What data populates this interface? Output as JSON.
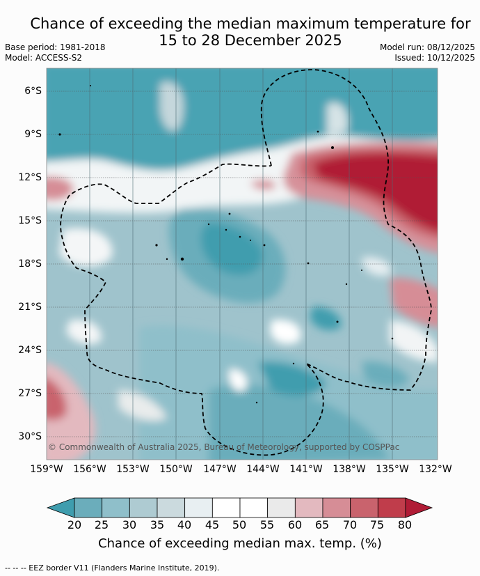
{
  "title": {
    "line1": "Chance of exceeding the median maximum temperature for",
    "line2": "15 to 28 December 2025"
  },
  "meta": {
    "base_period": "Base period: 1981-2018",
    "model": "Model: ACCESS-S2",
    "model_run": "Model run: 08/12/2025",
    "issued": "Issued: 10/12/2025"
  },
  "map": {
    "copyright": "© Commonwealth of Australia 2025, Bureau of Meteorology, supported by COSPPac",
    "lat_labels": [
      "6°S",
      "9°S",
      "12°S",
      "15°S",
      "18°S",
      "21°S",
      "24°S",
      "27°S",
      "30°S"
    ],
    "lon_labels": [
      "159°W",
      "156°W",
      "153°W",
      "150°W",
      "147°W",
      "144°W",
      "141°W",
      "138°W",
      "135°W",
      "132°W"
    ],
    "lat_range": [
      -31.5,
      -4.5
    ],
    "lon_range": [
      -159,
      -132
    ],
    "lat_values": [
      -6,
      -9,
      -12,
      -15,
      -18,
      -21,
      -24,
      -27,
      -30
    ],
    "lon_values": [
      -159,
      -156,
      -153,
      -150,
      -147,
      -144,
      -141,
      -138,
      -135,
      -132
    ]
  },
  "colorbar": {
    "title": "Chance of exceeding median max. temp. (%)",
    "ticks": [
      "20",
      "25",
      "30",
      "35",
      "40",
      "45",
      "50",
      "55",
      "60",
      "65",
      "70",
      "75",
      "80"
    ],
    "colors": [
      "#3f9dae",
      "#6badbb",
      "#8fbfca",
      "#aecbd2",
      "#cbdade",
      "#e8eff2",
      "#ffffff",
      "#ffffff",
      "#eaeaea",
      "#e3b9bf",
      "#d68d96",
      "#c9636d",
      "#c03d4b",
      "#b01c36"
    ]
  },
  "footer": "--  --  -- EEZ border V11 (Flanders Marine Institute, 2019)."
}
